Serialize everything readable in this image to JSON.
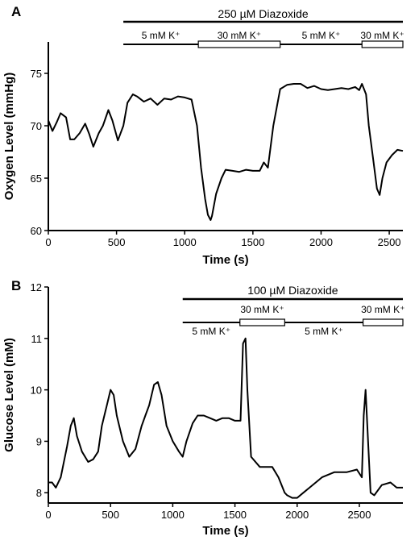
{
  "chart_data": [
    {
      "panel": "A",
      "type": "line",
      "title": "",
      "xlabel": "Time (s)",
      "ylabel": "Oxygen Level (mmHg)",
      "xlim": [
        0,
        2600
      ],
      "ylim": [
        60,
        78
      ],
      "xticks": [
        0,
        500,
        1000,
        1500,
        2000,
        2500
      ],
      "yticks": [
        60,
        65,
        70,
        75
      ],
      "grid": false,
      "treatments": {
        "drug": {
          "label": "250 µM Diazoxide",
          "start": 550,
          "end": 2600
        },
        "segments": [
          {
            "label": "5 mM K⁺",
            "start": 550,
            "end": 1100,
            "style": "line"
          },
          {
            "label": "30 mM K⁺",
            "start": 1100,
            "end": 1700,
            "style": "box"
          },
          {
            "label": "5 mM K⁺",
            "start": 1700,
            "end": 2300,
            "style": "line"
          },
          {
            "label": "30 mM K⁺",
            "start": 2300,
            "end": 2600,
            "style": "box"
          }
        ]
      },
      "series": [
        {
          "x": [
            0,
            30,
            60,
            90,
            130,
            160,
            190,
            230,
            270,
            300,
            330,
            370,
            400,
            440,
            470,
            510,
            550,
            580,
            620,
            650,
            700,
            750,
            800,
            850,
            900,
            950,
            1000,
            1050,
            1090,
            1120,
            1150,
            1170,
            1190,
            1200,
            1230,
            1270,
            1300,
            1350,
            1400,
            1450,
            1500,
            1550,
            1580,
            1610,
            1650,
            1700,
            1750,
            1800,
            1850,
            1900,
            1950,
            2000,
            2050,
            2100,
            2150,
            2200,
            2250,
            2280,
            2300,
            2330,
            2350,
            2380,
            2410,
            2430,
            2450,
            2480,
            2520,
            2560,
            2600
          ],
          "values": [
            70.5,
            69.5,
            70.3,
            71.2,
            70.8,
            68.7,
            68.7,
            69.3,
            70.2,
            69.2,
            68.0,
            69.3,
            70.0,
            71.5,
            70.5,
            68.6,
            70.0,
            72.2,
            73.0,
            72.8,
            72.3,
            72.6,
            72.0,
            72.6,
            72.5,
            72.8,
            72.7,
            72.5,
            70.0,
            66.0,
            63.0,
            61.5,
            61.0,
            61.4,
            63.5,
            65.0,
            65.8,
            65.7,
            65.6,
            65.8,
            65.7,
            65.7,
            66.5,
            66.0,
            70.0,
            73.5,
            73.9,
            74.0,
            74.0,
            73.6,
            73.8,
            73.5,
            73.4,
            73.5,
            73.6,
            73.5,
            73.7,
            73.4,
            74.0,
            73.0,
            70.0,
            67.0,
            64.0,
            63.4,
            65.0,
            66.5,
            67.2,
            67.7,
            67.6
          ]
        }
      ]
    },
    {
      "panel": "B",
      "type": "line",
      "title": "",
      "xlabel": "Time (s)",
      "ylabel": "Glucose Level (mM)",
      "xlim": [
        0,
        2850
      ],
      "ylim": [
        7.8,
        12
      ],
      "xticks": [
        0,
        500,
        1000,
        1500,
        2000,
        2500
      ],
      "yticks": [
        8,
        9,
        10,
        11,
        12
      ],
      "grid": false,
      "treatments": {
        "drug": {
          "label": "100 µM Diazoxide",
          "start": 1080,
          "end": 2850
        },
        "segments": [
          {
            "label": "5 mM K⁺",
            "start": 1080,
            "end": 1540,
            "style": "line"
          },
          {
            "label": "30 mM K⁺",
            "start": 1540,
            "end": 1900,
            "style": "box"
          },
          {
            "label": "5 mM K⁺",
            "start": 1900,
            "end": 2530,
            "style": "line"
          },
          {
            "label": "30 mM K⁺",
            "start": 2530,
            "end": 2850,
            "style": "box"
          }
        ]
      },
      "series": [
        {
          "x": [
            0,
            30,
            60,
            100,
            150,
            180,
            205,
            230,
            270,
            320,
            360,
            400,
            430,
            470,
            500,
            525,
            550,
            600,
            650,
            700,
            750,
            780,
            810,
            850,
            880,
            910,
            950,
            1000,
            1050,
            1080,
            1110,
            1160,
            1200,
            1250,
            1300,
            1350,
            1400,
            1450,
            1500,
            1545,
            1565,
            1585,
            1600,
            1630,
            1700,
            1750,
            1800,
            1850,
            1900,
            1920,
            1960,
            2000,
            2050,
            2100,
            2200,
            2300,
            2400,
            2480,
            2520,
            2535,
            2550,
            2570,
            2590,
            2620,
            2680,
            2750,
            2800,
            2850
          ],
          "values": [
            8.2,
            8.2,
            8.1,
            8.3,
            8.9,
            9.3,
            9.45,
            9.1,
            8.8,
            8.6,
            8.65,
            8.8,
            9.3,
            9.7,
            10.0,
            9.9,
            9.5,
            9.0,
            8.7,
            8.85,
            9.3,
            9.5,
            9.7,
            10.1,
            10.15,
            9.9,
            9.3,
            9.0,
            8.8,
            8.7,
            9.0,
            9.35,
            9.5,
            9.5,
            9.45,
            9.4,
            9.45,
            9.45,
            9.4,
            9.4,
            10.9,
            11.0,
            10.0,
            8.7,
            8.5,
            8.5,
            8.5,
            8.3,
            8.0,
            7.95,
            7.9,
            7.9,
            8.0,
            8.1,
            8.3,
            8.4,
            8.4,
            8.45,
            8.3,
            9.5,
            10.0,
            9.0,
            8.0,
            7.95,
            8.15,
            8.2,
            8.1,
            8.1
          ]
        }
      ]
    }
  ]
}
